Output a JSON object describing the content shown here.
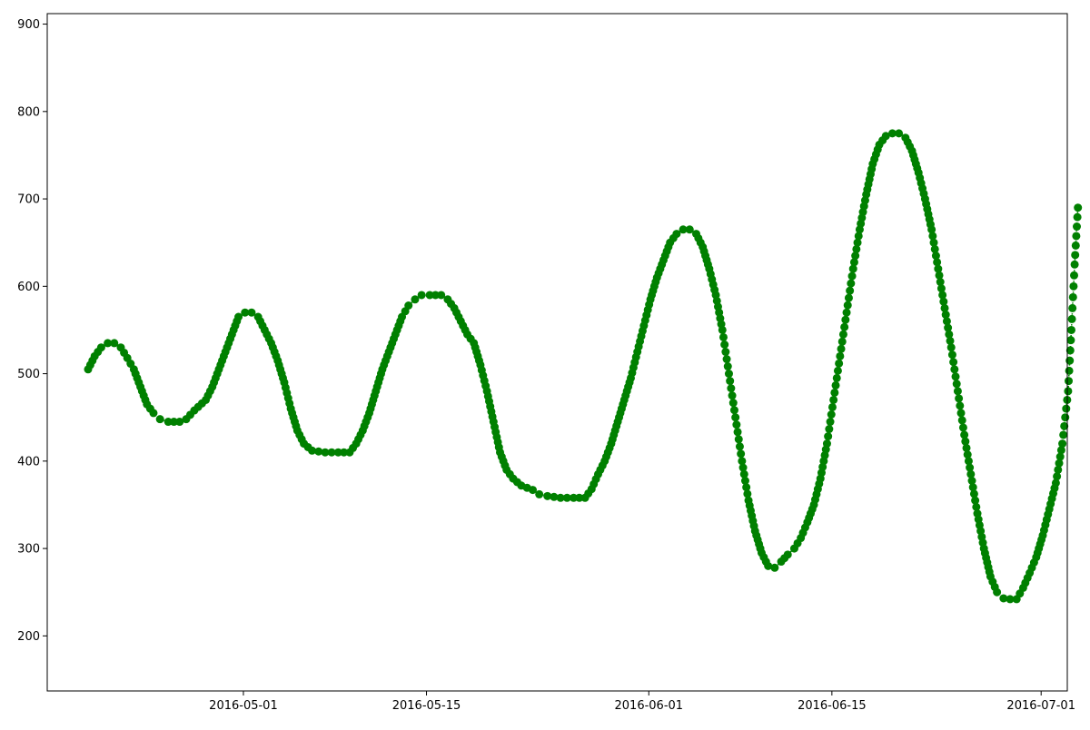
{
  "chart_data": {
    "type": "line",
    "title": "",
    "xlabel": "",
    "ylabel": "",
    "x_type": "date",
    "xlim": [
      "2016-04-16",
      "2016-07-03"
    ],
    "ylim": [
      137,
      912
    ],
    "x_ticks": [
      "2016-05-01",
      "2016-05-15",
      "2016-06-01",
      "2016-06-15",
      "2016-07-01"
    ],
    "y_ticks": [
      200,
      300,
      400,
      500,
      600,
      700,
      800,
      900
    ],
    "grid": false,
    "legend": "none",
    "series": [
      {
        "color": "#008000",
        "line_style": "dotted",
        "marker": "circle",
        "points": [
          [
            "2016-04-19",
            505
          ],
          [
            "2016-04-19",
            520
          ],
          [
            "2016-04-20",
            530
          ],
          [
            "2016-04-20",
            535
          ],
          [
            "2016-04-21",
            535
          ],
          [
            "2016-04-21",
            530
          ],
          [
            "2016-04-22",
            518
          ],
          [
            "2016-04-22",
            505
          ],
          [
            "2016-04-23",
            485
          ],
          [
            "2016-04-23",
            465
          ],
          [
            "2016-04-24",
            455
          ],
          [
            "2016-04-24",
            448
          ],
          [
            "2016-04-25",
            445
          ],
          [
            "2016-04-26",
            445
          ],
          [
            "2016-04-26",
            448
          ],
          [
            "2016-04-27",
            458
          ],
          [
            "2016-04-28",
            470
          ],
          [
            "2016-04-28",
            485
          ],
          [
            "2016-04-29",
            505
          ],
          [
            "2016-04-29",
            525
          ],
          [
            "2016-04-30",
            545
          ],
          [
            "2016-04-30",
            565
          ],
          [
            "2016-05-01",
            570
          ],
          [
            "2016-05-01",
            570
          ],
          [
            "2016-05-02",
            565
          ],
          [
            "2016-05-02",
            550
          ],
          [
            "2016-05-03",
            535
          ],
          [
            "2016-05-03",
            515
          ],
          [
            "2016-05-04",
            490
          ],
          [
            "2016-05-04",
            460
          ],
          [
            "2016-05-05",
            435
          ],
          [
            "2016-05-05",
            420
          ],
          [
            "2016-05-06",
            412
          ],
          [
            "2016-05-07",
            410
          ],
          [
            "2016-05-08",
            410
          ],
          [
            "2016-05-09",
            410
          ],
          [
            "2016-05-09",
            420
          ],
          [
            "2016-05-10",
            435
          ],
          [
            "2016-05-10",
            455
          ],
          [
            "2016-05-11",
            480
          ],
          [
            "2016-05-11",
            505
          ],
          [
            "2016-05-12",
            525
          ],
          [
            "2016-05-12",
            545
          ],
          [
            "2016-05-13",
            565
          ],
          [
            "2016-05-13",
            578
          ],
          [
            "2016-05-14",
            585
          ],
          [
            "2016-05-14",
            590
          ],
          [
            "2016-05-15",
            590
          ],
          [
            "2016-05-16",
            590
          ],
          [
            "2016-05-16",
            585
          ],
          [
            "2016-05-17",
            575
          ],
          [
            "2016-05-17",
            560
          ],
          [
            "2016-05-18",
            545
          ],
          [
            "2016-05-18",
            535
          ],
          [
            "2016-05-19",
            510
          ],
          [
            "2016-05-19",
            480
          ],
          [
            "2016-05-20",
            445
          ],
          [
            "2016-05-20",
            410
          ],
          [
            "2016-05-21",
            390
          ],
          [
            "2016-05-21",
            380
          ],
          [
            "2016-05-22",
            372
          ],
          [
            "2016-05-23",
            367
          ],
          [
            "2016-05-23",
            362
          ],
          [
            "2016-05-24",
            360
          ],
          [
            "2016-05-25",
            358
          ],
          [
            "2016-05-26",
            358
          ],
          [
            "2016-05-27",
            358
          ],
          [
            "2016-05-27",
            368
          ],
          [
            "2016-05-28",
            385
          ],
          [
            "2016-05-28",
            400
          ],
          [
            "2016-05-29",
            420
          ],
          [
            "2016-05-29",
            445
          ],
          [
            "2016-05-30",
            470
          ],
          [
            "2016-05-30",
            495
          ],
          [
            "2016-05-31",
            525
          ],
          [
            "2016-05-31",
            555
          ],
          [
            "2016-06-01",
            585
          ],
          [
            "2016-06-01",
            610
          ],
          [
            "2016-06-02",
            630
          ],
          [
            "2016-06-02",
            650
          ],
          [
            "2016-06-03",
            660
          ],
          [
            "2016-06-03",
            665
          ],
          [
            "2016-06-04",
            665
          ],
          [
            "2016-06-04",
            660
          ],
          [
            "2016-06-05",
            645
          ],
          [
            "2016-06-05",
            620
          ],
          [
            "2016-06-06",
            590
          ],
          [
            "2016-06-06",
            550
          ],
          [
            "2016-06-07",
            500
          ],
          [
            "2016-06-07",
            450
          ],
          [
            "2016-06-08",
            400
          ],
          [
            "2016-06-08",
            355
          ],
          [
            "2016-06-09",
            320
          ],
          [
            "2016-06-09",
            295
          ],
          [
            "2016-06-10",
            280
          ],
          [
            "2016-06-10",
            278
          ],
          [
            "2016-06-11",
            285
          ],
          [
            "2016-06-11",
            293
          ],
          [
            "2016-06-12",
            300
          ],
          [
            "2016-06-12",
            312
          ],
          [
            "2016-06-13",
            330
          ],
          [
            "2016-06-13",
            350
          ],
          [
            "2016-06-14",
            380
          ],
          [
            "2016-06-14",
            420
          ],
          [
            "2016-06-15",
            470
          ],
          [
            "2016-06-15",
            520
          ],
          [
            "2016-06-16",
            570
          ],
          [
            "2016-06-16",
            620
          ],
          [
            "2016-06-17",
            665
          ],
          [
            "2016-06-17",
            705
          ],
          [
            "2016-06-18",
            740
          ],
          [
            "2016-06-18",
            762
          ],
          [
            "2016-06-19",
            772
          ],
          [
            "2016-06-19",
            775
          ],
          [
            "2016-06-20",
            775
          ],
          [
            "2016-06-20",
            770
          ],
          [
            "2016-06-21",
            755
          ],
          [
            "2016-06-21",
            730
          ],
          [
            "2016-06-22",
            700
          ],
          [
            "2016-06-22",
            665
          ],
          [
            "2016-06-23",
            620
          ],
          [
            "2016-06-23",
            575
          ],
          [
            "2016-06-24",
            530
          ],
          [
            "2016-06-24",
            480
          ],
          [
            "2016-06-25",
            430
          ],
          [
            "2016-06-25",
            385
          ],
          [
            "2016-06-26",
            340
          ],
          [
            "2016-06-26",
            300
          ],
          [
            "2016-06-27",
            268
          ],
          [
            "2016-06-27",
            250
          ],
          [
            "2016-06-28",
            243
          ],
          [
            "2016-06-28",
            242
          ],
          [
            "2016-06-29",
            242
          ],
          [
            "2016-06-29",
            255
          ],
          [
            "2016-06-30",
            272
          ],
          [
            "2016-06-30",
            290
          ],
          [
            "2016-07-01",
            315
          ],
          [
            "2016-07-01",
            345
          ],
          [
            "2016-07-02",
            375
          ],
          [
            "2016-07-02",
            420
          ],
          [
            "2016-07-03",
            480
          ],
          [
            "2016-07-03",
            550
          ],
          [
            "2016-07-03",
            625
          ],
          [
            "2016-07-03",
            690
          ]
        ]
      }
    ]
  }
}
